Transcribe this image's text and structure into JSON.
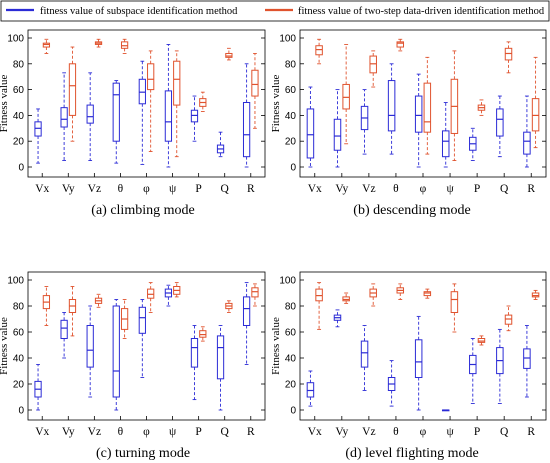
{
  "legend": {
    "items": [
      {
        "label": "fitness value of subspace identification method",
        "color": "#2b2bd6"
      },
      {
        "label": "fitness value of two-step data-driven identification method",
        "color": "#e0532e"
      }
    ]
  },
  "captions": [
    "(a) climbing mode",
    "(b) descending mode",
    "(c) turning mode",
    "(d) level flighting mode"
  ],
  "chart_data": [
    {
      "type": "boxplot",
      "title": "(a) climbing mode",
      "ylabel": "Fitness value",
      "ylim": [
        0,
        100
      ],
      "yticks": [
        0,
        20,
        40,
        60,
        80,
        100
      ],
      "categories": [
        "Vx",
        "Vy",
        "Vz",
        "θ",
        "φ",
        "ψ",
        "P",
        "Q",
        "R"
      ],
      "series": [
        {
          "name": "fitness value of subspace identification method",
          "color": "#2b2bd6",
          "boxes": [
            {
              "min": 3,
              "q1": 24,
              "median": 30,
              "q3": 35,
              "max": 45
            },
            {
              "min": 5,
              "q1": 31,
              "median": 37,
              "q3": 46,
              "max": 73
            },
            {
              "min": 5,
              "q1": 34,
              "median": 39,
              "q3": 48,
              "max": 73
            },
            {
              "min": 3,
              "q1": 20,
              "median": 56,
              "q3": 65,
              "max": 67
            },
            {
              "min": 2,
              "q1": 49,
              "median": 58,
              "q3": 68,
              "max": 82
            },
            {
              "min": 0,
              "q1": 20,
              "median": 35,
              "q3": 59,
              "max": 95
            },
            {
              "min": 20,
              "q1": 35,
              "median": 40,
              "q3": 44,
              "max": 55
            },
            {
              "min": 8,
              "q1": 11,
              "median": 14,
              "q3": 17,
              "max": 27
            },
            {
              "min": 0,
              "q1": 8,
              "median": 25,
              "q3": 50,
              "max": 80
            }
          ]
        },
        {
          "name": "fitness value of two-step data-driven identification method",
          "color": "#e0532e",
          "boxes": [
            {
              "min": 88,
              "q1": 93,
              "median": 95,
              "q3": 96,
              "max": 99
            },
            {
              "min": 20,
              "q1": 40,
              "median": 63,
              "q3": 80,
              "max": 93
            },
            {
              "min": 93,
              "q1": 95,
              "median": 96,
              "q3": 97,
              "max": 99
            },
            {
              "min": 88,
              "q1": 92,
              "median": 94,
              "q3": 97,
              "max": 99
            },
            {
              "min": 12,
              "q1": 60,
              "median": 68,
              "q3": 80,
              "max": 90
            },
            {
              "min": 8,
              "q1": 48,
              "median": 68,
              "q3": 82,
              "max": 90
            },
            {
              "min": 43,
              "q1": 47,
              "median": 50,
              "q3": 53,
              "max": 58
            },
            {
              "min": 83,
              "q1": 85,
              "median": 86,
              "q3": 88,
              "max": 92
            },
            {
              "min": 30,
              "q1": 55,
              "median": 64,
              "q3": 75,
              "max": 88
            }
          ]
        }
      ]
    },
    {
      "type": "boxplot",
      "title": "(b) descending mode",
      "ylabel": "Fitness value",
      "ylim": [
        0,
        100
      ],
      "yticks": [
        0,
        20,
        40,
        60,
        80,
        100
      ],
      "categories": [
        "Vx",
        "Vy",
        "Vz",
        "θ",
        "φ",
        "ψ",
        "P",
        "Q",
        "R"
      ],
      "series": [
        {
          "name": "fitness value of subspace identification method",
          "color": "#2b2bd6",
          "boxes": [
            {
              "min": 0,
              "q1": 7,
              "median": 25,
              "q3": 45,
              "max": 62
            },
            {
              "min": 0,
              "q1": 13,
              "median": 24,
              "q3": 37,
              "max": 60
            },
            {
              "min": 10,
              "q1": 29,
              "median": 38,
              "q3": 47,
              "max": 60
            },
            {
              "min": 10,
              "q1": 28,
              "median": 40,
              "q3": 67,
              "max": 80
            },
            {
              "min": 0,
              "q1": 27,
              "median": 40,
              "q3": 55,
              "max": 72
            },
            {
              "min": 0,
              "q1": 8,
              "median": 20,
              "q3": 28,
              "max": 50
            },
            {
              "min": 5,
              "q1": 13,
              "median": 18,
              "q3": 23,
              "max": 30
            },
            {
              "min": 8,
              "q1": 24,
              "median": 37,
              "q3": 45,
              "max": 55
            },
            {
              "min": 0,
              "q1": 10,
              "median": 20,
              "q3": 27,
              "max": 55
            }
          ]
        },
        {
          "name": "fitness value of two-step data-driven identification method",
          "color": "#e0532e",
          "boxes": [
            {
              "min": 80,
              "q1": 87,
              "median": 91,
              "q3": 94,
              "max": 99
            },
            {
              "min": 18,
              "q1": 45,
              "median": 54,
              "q3": 64,
              "max": 95
            },
            {
              "min": 62,
              "q1": 73,
              "median": 80,
              "q3": 86,
              "max": 90
            },
            {
              "min": 90,
              "q1": 93,
              "median": 96,
              "q3": 97,
              "max": 99
            },
            {
              "min": 10,
              "q1": 27,
              "median": 35,
              "q3": 65,
              "max": 85
            },
            {
              "min": 5,
              "q1": 26,
              "median": 47,
              "q3": 68,
              "max": 90
            },
            {
              "min": 40,
              "q1": 44,
              "median": 46,
              "q3": 48,
              "max": 52
            },
            {
              "min": 73,
              "q1": 83,
              "median": 88,
              "q3": 92,
              "max": 97
            },
            {
              "min": 15,
              "q1": 28,
              "median": 40,
              "q3": 53,
              "max": 85
            }
          ]
        }
      ]
    },
    {
      "type": "boxplot",
      "title": "(c) turning mode",
      "ylabel": "Fitness value",
      "ylim": [
        0,
        100
      ],
      "yticks": [
        0,
        20,
        40,
        60,
        80,
        100
      ],
      "categories": [
        "Vx",
        "Vy",
        "Vz",
        "θ",
        "φ",
        "ψ",
        "P",
        "Q",
        "R"
      ],
      "series": [
        {
          "name": "fitness value of subspace identification method",
          "color": "#2b2bd6",
          "boxes": [
            {
              "min": 0,
              "q1": 10,
              "median": 16,
              "q3": 22,
              "max": 35
            },
            {
              "min": 40,
              "q1": 55,
              "median": 63,
              "q3": 69,
              "max": 75
            },
            {
              "min": 10,
              "q1": 33,
              "median": 46,
              "q3": 65,
              "max": 80
            },
            {
              "min": 0,
              "q1": 10,
              "median": 30,
              "q3": 80,
              "max": 85
            },
            {
              "min": 25,
              "q1": 59,
              "median": 71,
              "q3": 79,
              "max": 85
            },
            {
              "min": 80,
              "q1": 87,
              "median": 90,
              "q3": 93,
              "max": 96
            },
            {
              "min": 8,
              "q1": 33,
              "median": 48,
              "q3": 55,
              "max": 65
            },
            {
              "min": 0,
              "q1": 24,
              "median": 48,
              "q3": 57,
              "max": 65
            },
            {
              "min": 35,
              "q1": 65,
              "median": 78,
              "q3": 87,
              "max": 98
            }
          ]
        },
        {
          "name": "fitness value of two-step data-driven identification method",
          "color": "#e0532e",
          "boxes": [
            {
              "min": 65,
              "q1": 78,
              "median": 83,
              "q3": 88,
              "max": 95
            },
            {
              "min": 57,
              "q1": 75,
              "median": 80,
              "q3": 85,
              "max": 95
            },
            {
              "min": 79,
              "q1": 82,
              "median": 84,
              "q3": 86,
              "max": 89
            },
            {
              "min": 55,
              "q1": 62,
              "median": 70,
              "q3": 78,
              "max": 85
            },
            {
              "min": 75,
              "q1": 86,
              "median": 89,
              "q3": 93,
              "max": 98
            },
            {
              "min": 87,
              "q1": 89,
              "median": 92,
              "q3": 95,
              "max": 98
            },
            {
              "min": 53,
              "q1": 56,
              "median": 58,
              "q3": 61,
              "max": 64
            },
            {
              "min": 75,
              "q1": 78,
              "median": 80,
              "q3": 82,
              "max": 84
            },
            {
              "min": 80,
              "q1": 87,
              "median": 91,
              "q3": 94,
              "max": 97
            }
          ]
        }
      ]
    },
    {
      "type": "boxplot",
      "title": "(d) level flighting mode",
      "ylabel": "Fitness value",
      "ylim": [
        0,
        100
      ],
      "yticks": [
        0,
        20,
        40,
        60,
        80,
        100
      ],
      "categories": [
        "Vx",
        "Vy",
        "Vz",
        "θ",
        "φ",
        "ψ",
        "P",
        "Q",
        "R"
      ],
      "series": [
        {
          "name": "fitness value of subspace identification method",
          "color": "#2b2bd6",
          "boxes": [
            {
              "min": 3,
              "q1": 10,
              "median": 15,
              "q3": 21,
              "max": 30
            },
            {
              "min": 64,
              "q1": 69,
              "median": 71,
              "q3": 73,
              "max": 77
            },
            {
              "min": 15,
              "q1": 33,
              "median": 44,
              "q3": 53,
              "max": 65
            },
            {
              "min": 3,
              "q1": 15,
              "median": 20,
              "q3": 25,
              "max": 38
            },
            {
              "min": 0,
              "q1": 25,
              "median": 37,
              "q3": 54,
              "max": 72
            },
            {
              "min": 0,
              "q1": 0,
              "median": 0,
              "q3": 0,
              "max": 0
            },
            {
              "min": 5,
              "q1": 28,
              "median": 35,
              "q3": 42,
              "max": 55
            },
            {
              "min": 5,
              "q1": 28,
              "median": 38,
              "q3": 48,
              "max": 62
            },
            {
              "min": 10,
              "q1": 32,
              "median": 40,
              "q3": 47,
              "max": 65
            }
          ]
        },
        {
          "name": "fitness value of two-step data-driven identification method",
          "color": "#e0532e",
          "boxes": [
            {
              "min": 62,
              "q1": 84,
              "median": 88,
              "q3": 93,
              "max": 98
            },
            {
              "min": 82,
              "q1": 84,
              "median": 85,
              "q3": 87,
              "max": 90
            },
            {
              "min": 80,
              "q1": 87,
              "median": 90,
              "q3": 93,
              "max": 97
            },
            {
              "min": 85,
              "q1": 90,
              "median": 92,
              "q3": 94,
              "max": 97
            },
            {
              "min": 86,
              "q1": 88,
              "median": 90,
              "q3": 91,
              "max": 93
            },
            {
              "min": 60,
              "q1": 75,
              "median": 85,
              "q3": 91,
              "max": 97
            },
            {
              "min": 50,
              "q1": 52,
              "median": 53,
              "q3": 55,
              "max": 57
            },
            {
              "min": 61,
              "q1": 66,
              "median": 70,
              "q3": 73,
              "max": 80
            },
            {
              "min": 85,
              "q1": 87,
              "median": 88,
              "q3": 90,
              "max": 92
            }
          ]
        }
      ]
    }
  ]
}
